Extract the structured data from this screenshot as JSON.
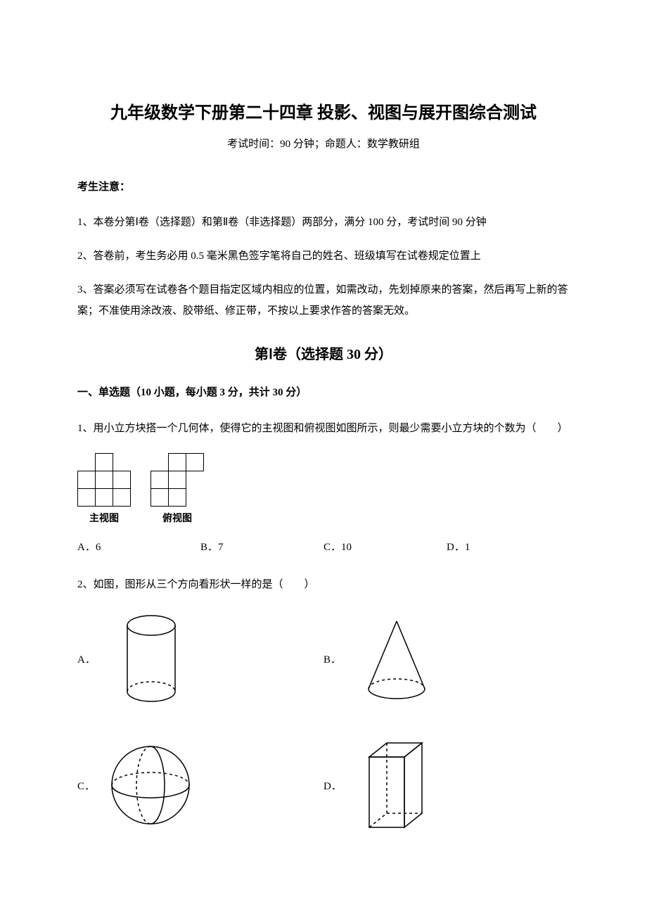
{
  "title": "九年级数学下册第二十四章 投影、视图与展开图综合测试",
  "subtitle": "考试时间：90 分钟；命题人：数学教研组",
  "notice_heading": "考生注意：",
  "notice1": "1、本卷分第Ⅰ卷（选择题）和第Ⅱ卷（非选择题）两部分，满分 100 分，考试时间 90 分钟",
  "notice2": "2、答卷前，考生务必用 0.5 毫米黑色签字笔将自己的姓名、班级填写在试卷规定位置上",
  "notice3": "3、答案必须写在试卷各个题目指定区域内相应的位置，如需改动，先划掉原来的答案，然后再写上新的答案；不准使用涂改液、胶带纸、修正带，不按以上要求作答的答案无效。",
  "section1_title": "第Ⅰ卷（选择题   30 分）",
  "section1_sub": "一、单选题（10 小题，每小题 3 分，共计 30 分）",
  "q1": {
    "text": "1、用小立方块搭一个几何体，使得它的主视图和俯视图如图所示，则最少需要小立方块的个数为（　　）",
    "front_grid": [
      [
        0,
        1,
        0
      ],
      [
        1,
        1,
        1
      ],
      [
        1,
        1,
        1
      ]
    ],
    "front_label": "主视图",
    "top_grid": [
      [
        0,
        1,
        1
      ],
      [
        1,
        1,
        0
      ],
      [
        1,
        1,
        0
      ]
    ],
    "top_label": "俯视图",
    "options": {
      "A": "A．6",
      "B": "B．7",
      "C": "C．10",
      "D": "D．1"
    }
  },
  "q2": {
    "text": "2、如图，图形从三个方向看形状一样的是（　　）",
    "options": {
      "A": "A．",
      "B": "B．",
      "C": "C．",
      "D": "D．"
    },
    "shapes": {
      "A": {
        "type": "cylinder",
        "stroke": "#000000"
      },
      "B": {
        "type": "cone",
        "stroke": "#000000"
      },
      "C": {
        "type": "sphere",
        "stroke": "#000000"
      },
      "D": {
        "type": "cuboid",
        "stroke": "#000000"
      }
    }
  },
  "colors": {
    "text": "#000000",
    "bg": "#ffffff"
  },
  "fonts": {
    "title_size": 24,
    "body_size": 15
  }
}
